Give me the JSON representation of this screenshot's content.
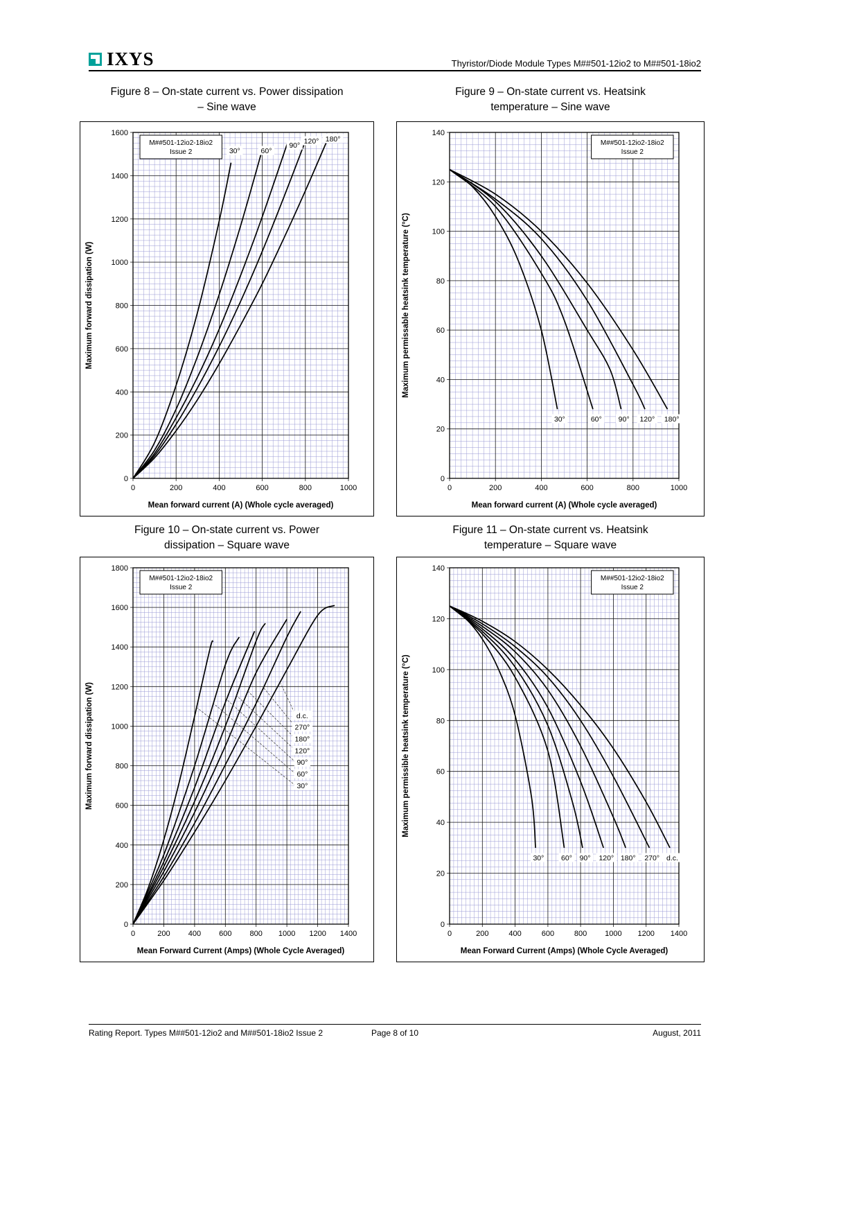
{
  "header": {
    "logo": "IXYS",
    "title": "Thyristor/Diode Module Types M##501-12io2 to M##501-18io2"
  },
  "footer": {
    "left": "Rating Report. Types M##501-12io2 and M##501-18io2 Issue 2",
    "center": "Page 8 of 10",
    "right": "August, 2011"
  },
  "figures": [
    {
      "caption_line1": "Figure 8 – On-state current vs. Power dissipation",
      "caption_line2": "– Sine wave"
    },
    {
      "caption_line1": "Figure 9 – On-state current vs. Heatsink",
      "caption_line2": "temperature – Sine wave"
    },
    {
      "caption_line1": "Figure 10 – On-state current vs. Power",
      "caption_line2": "dissipation – Square wave"
    },
    {
      "caption_line1": "Figure 11 – On-state current vs. Heatsink",
      "caption_line2": "temperature – Square wave"
    }
  ],
  "colors": {
    "minor_grid": "#9a9ad6",
    "major_grid": "#1a1a1a",
    "curve": "#000000",
    "logo_teal": "#00a19a"
  },
  "chart_data": [
    {
      "type": "line",
      "title": "On-state current vs. Power dissipation – Sine wave",
      "xlabel": "Mean forward current (A) (Whole cycle averaged)",
      "ylabel": "Maximum forward dissipation (W)",
      "xlim": [
        0,
        1000
      ],
      "ylim": [
        0,
        1600
      ],
      "xtick": 200,
      "ytick": 200,
      "xminor": 25,
      "yminor": 25,
      "note": [
        "M##501-12io2-18io2",
        "Issue 2"
      ],
      "note_pos": "left",
      "series": [
        {
          "name": "30°",
          "points": [
            [
              0,
              0
            ],
            [
              100,
              165
            ],
            [
              200,
              430
            ],
            [
              300,
              770
            ],
            [
              400,
              1190
            ],
            [
              455,
              1460
            ]
          ]
        },
        {
          "name": "60°",
          "points": [
            [
              0,
              0
            ],
            [
              100,
              130
            ],
            [
              200,
              320
            ],
            [
              300,
              565
            ],
            [
              400,
              850
            ],
            [
              500,
              1170
            ],
            [
              600,
              1520
            ]
          ]
        },
        {
          "name": "90°",
          "points": [
            [
              0,
              0
            ],
            [
              100,
              115
            ],
            [
              200,
              280
            ],
            [
              300,
              470
            ],
            [
              400,
              690
            ],
            [
              500,
              940
            ],
            [
              600,
              1210
            ],
            [
              720,
              1560
            ]
          ]
        },
        {
          "name": "120°",
          "points": [
            [
              0,
              0
            ],
            [
              100,
              105
            ],
            [
              200,
              250
            ],
            [
              300,
              420
            ],
            [
              400,
              610
            ],
            [
              500,
              820
            ],
            [
              600,
              1050
            ],
            [
              700,
              1300
            ],
            [
              800,
              1560
            ]
          ]
        },
        {
          "name": "180°",
          "points": [
            [
              0,
              0
            ],
            [
              100,
              95
            ],
            [
              200,
              220
            ],
            [
              300,
              365
            ],
            [
              400,
              530
            ],
            [
              500,
              710
            ],
            [
              600,
              900
            ],
            [
              700,
              1110
            ],
            [
              800,
              1330
            ],
            [
              900,
              1560
            ]
          ]
        }
      ],
      "curve_labels": [
        {
          "text": "30°",
          "x": 472,
          "y": 1515
        },
        {
          "text": "60°",
          "x": 619,
          "y": 1515
        },
        {
          "text": "90°",
          "x": 750,
          "y": 1540
        },
        {
          "text": "120°",
          "x": 828,
          "y": 1560
        },
        {
          "text": "180°",
          "x": 928,
          "y": 1570
        }
      ],
      "leaders": []
    },
    {
      "type": "line",
      "title": "On-state current vs. Heatsink temperature – Sine wave",
      "xlabel": "Mean forward current (A) (Whole cycle averaged)",
      "ylabel": "Maximum permissable heatsink temperature (°C)",
      "xlim": [
        0,
        1000
      ],
      "ylim": [
        0,
        140
      ],
      "xtick": 200,
      "ytick": 20,
      "xminor": 25,
      "yminor": 2.5,
      "note": [
        "M##501-12io2-18io2",
        "Issue 2"
      ],
      "note_pos": "right",
      "series": [
        {
          "name": "30°",
          "points": [
            [
              0,
              125
            ],
            [
              100,
              118
            ],
            [
              200,
              106
            ],
            [
              300,
              88
            ],
            [
              400,
              60
            ],
            [
              470,
              28
            ]
          ]
        },
        {
          "name": "60°",
          "points": [
            [
              0,
              125
            ],
            [
              200,
              110
            ],
            [
              400,
              83
            ],
            [
              500,
              64
            ],
            [
              625,
              28
            ]
          ]
        },
        {
          "name": "90°",
          "points": [
            [
              0,
              125
            ],
            [
              200,
              112
            ],
            [
              400,
              90
            ],
            [
              600,
              60
            ],
            [
              700,
              44
            ],
            [
              748,
              28
            ]
          ]
        },
        {
          "name": "120°",
          "points": [
            [
              0,
              125
            ],
            [
              200,
              113
            ],
            [
              400,
              97
            ],
            [
              600,
              72
            ],
            [
              800,
              38
            ],
            [
              852,
              28
            ]
          ]
        },
        {
          "name": "180°",
          "points": [
            [
              0,
              125
            ],
            [
              200,
              115
            ],
            [
              400,
              100
            ],
            [
              600,
              79
            ],
            [
              800,
              52
            ],
            [
              950,
              28
            ]
          ]
        }
      ],
      "curve_labels": [
        {
          "text": "30°",
          "x": 480,
          "y": 24
        },
        {
          "text": "60°",
          "x": 640,
          "y": 24
        },
        {
          "text": "90°",
          "x": 760,
          "y": 24
        },
        {
          "text": "120°",
          "x": 862,
          "y": 24
        },
        {
          "text": "180°",
          "x": 969,
          "y": 24
        }
      ],
      "leaders": []
    },
    {
      "type": "line",
      "title": "On-state current vs. Power dissipation – Square wave",
      "xlabel": "Mean Forward Current (Amps) (Whole Cycle Averaged)",
      "ylabel": "Maximum forward dissipation (W)",
      "xlim": [
        0,
        1400
      ],
      "ylim": [
        0,
        1800
      ],
      "xtick": 200,
      "ytick": 200,
      "xminor": 25,
      "yminor": 25,
      "note": [
        "M##501-12io2-18io2",
        "Issue 2"
      ],
      "note_pos": "left",
      "series": [
        {
          "name": "30°",
          "points": [
            [
              0,
              0
            ],
            [
              100,
              185
            ],
            [
              200,
              425
            ],
            [
              300,
              715
            ],
            [
              400,
              1050
            ],
            [
              500,
              1390
            ],
            [
              520,
              1430
            ]
          ]
        },
        {
          "name": "60°",
          "points": [
            [
              0,
              0
            ],
            [
              200,
              350
            ],
            [
              400,
              800
            ],
            [
              600,
              1310
            ],
            [
              690,
              1450
            ]
          ]
        },
        {
          "name": "90°",
          "points": [
            [
              0,
              0
            ],
            [
              200,
              315
            ],
            [
              400,
              690
            ],
            [
              600,
              1120
            ],
            [
              790,
              1480
            ]
          ]
        },
        {
          "name": "120°",
          "points": [
            [
              0,
              0
            ],
            [
              200,
              290
            ],
            [
              400,
              620
            ],
            [
              600,
              1000
            ],
            [
              800,
              1430
            ],
            [
              860,
              1520
            ]
          ]
        },
        {
          "name": "180°",
          "points": [
            [
              0,
              0
            ],
            [
              200,
              265
            ],
            [
              400,
              565
            ],
            [
              600,
              900
            ],
            [
              800,
              1270
            ],
            [
              1000,
              1540
            ]
          ]
        },
        {
          "name": "270°",
          "points": [
            [
              0,
              0
            ],
            [
              200,
              240
            ],
            [
              400,
              510
            ],
            [
              600,
              805
            ],
            [
              800,
              1115
            ],
            [
              1000,
              1450
            ],
            [
              1090,
              1580
            ]
          ]
        },
        {
          "name": "d.c.",
          "points": [
            [
              0,
              0
            ],
            [
              200,
              220
            ],
            [
              400,
              465
            ],
            [
              600,
              725
            ],
            [
              800,
              1000
            ],
            [
              1000,
              1285
            ],
            [
              1200,
              1560
            ],
            [
              1310,
              1610
            ]
          ]
        }
      ],
      "curve_labels": [
        {
          "text": "d.c.",
          "x": 1100,
          "y": 1053
        },
        {
          "text": "270°",
          "x": 1100,
          "y": 994
        },
        {
          "text": "180°",
          "x": 1100,
          "y": 935
        },
        {
          "text": "120°",
          "x": 1100,
          "y": 876
        },
        {
          "text": "90°",
          "x": 1100,
          "y": 817
        },
        {
          "text": "60°",
          "x": 1100,
          "y": 758
        },
        {
          "text": "30°",
          "x": 1100,
          "y": 699
        }
      ],
      "leaders": [
        [
          1058,
          1053,
          960,
          1215
        ],
        [
          1058,
          994,
          848,
          1195
        ],
        [
          1058,
          935,
          749,
          1175
        ],
        [
          1058,
          876,
          672,
          1155
        ],
        [
          1058,
          817,
          608,
          1135
        ],
        [
          1058,
          758,
          523,
          1115
        ],
        [
          1058,
          699,
          413,
          1095
        ]
      ]
    },
    {
      "type": "line",
      "title": "On-state current vs. Heatsink temperature – Square wave",
      "xlabel": "Mean Forward Current (Amps) (Whole Cycle Averaged)",
      "ylabel": "Maximum permissible heatsink temperature (°C)",
      "xlim": [
        0,
        1400
      ],
      "ylim": [
        0,
        140
      ],
      "xtick": 200,
      "ytick": 20,
      "xminor": 25,
      "yminor": 2.5,
      "note": [
        "M##501-12io2-18io2",
        "Issue 2"
      ],
      "note_pos": "right",
      "series": [
        {
          "name": "30°",
          "points": [
            [
              0,
              125
            ],
            [
              100,
              120
            ],
            [
              200,
              112
            ],
            [
              300,
              100
            ],
            [
              400,
              82
            ],
            [
              500,
              50
            ],
            [
              525,
              30
            ]
          ]
        },
        {
          "name": "60°",
          "points": [
            [
              0,
              125
            ],
            [
              200,
              114
            ],
            [
              400,
              97
            ],
            [
              600,
              68
            ],
            [
              700,
              30
            ]
          ]
        },
        {
          "name": "90°",
          "points": [
            [
              0,
              125
            ],
            [
              200,
              115
            ],
            [
              400,
              101
            ],
            [
              600,
              78
            ],
            [
              750,
              48
            ],
            [
              812,
              30
            ]
          ]
        },
        {
          "name": "120°",
          "points": [
            [
              0,
              125
            ],
            [
              200,
              116
            ],
            [
              400,
              104
            ],
            [
              600,
              85
            ],
            [
              800,
              56
            ],
            [
              940,
              30
            ]
          ]
        },
        {
          "name": "180°",
          "points": [
            [
              0,
              125
            ],
            [
              200,
              117
            ],
            [
              400,
              107
            ],
            [
              600,
              92
            ],
            [
              800,
              70
            ],
            [
              1000,
              42
            ],
            [
              1075,
              30
            ]
          ]
        },
        {
          "name": "270°",
          "points": [
            [
              0,
              125
            ],
            [
              200,
              118
            ],
            [
              400,
              109
            ],
            [
              600,
              97
            ],
            [
              800,
              80
            ],
            [
              1000,
              58
            ],
            [
              1220,
              30
            ]
          ]
        },
        {
          "name": "d.c.",
          "points": [
            [
              0,
              125
            ],
            [
              200,
              119
            ],
            [
              400,
              111
            ],
            [
              600,
              100
            ],
            [
              800,
              86
            ],
            [
              1000,
              69
            ],
            [
              1200,
              48
            ],
            [
              1345,
              30
            ]
          ]
        }
      ],
      "curve_labels": [
        {
          "text": "30°",
          "x": 543,
          "y": 26
        },
        {
          "text": "60°",
          "x": 715,
          "y": 26
        },
        {
          "text": "90°",
          "x": 827,
          "y": 26
        },
        {
          "text": "120°",
          "x": 957,
          "y": 26
        },
        {
          "text": "180°",
          "x": 1090,
          "y": 26
        },
        {
          "text": "270°",
          "x": 1236,
          "y": 26
        },
        {
          "text": "d.c.",
          "x": 1360,
          "y": 26
        }
      ],
      "leaders": []
    }
  ]
}
